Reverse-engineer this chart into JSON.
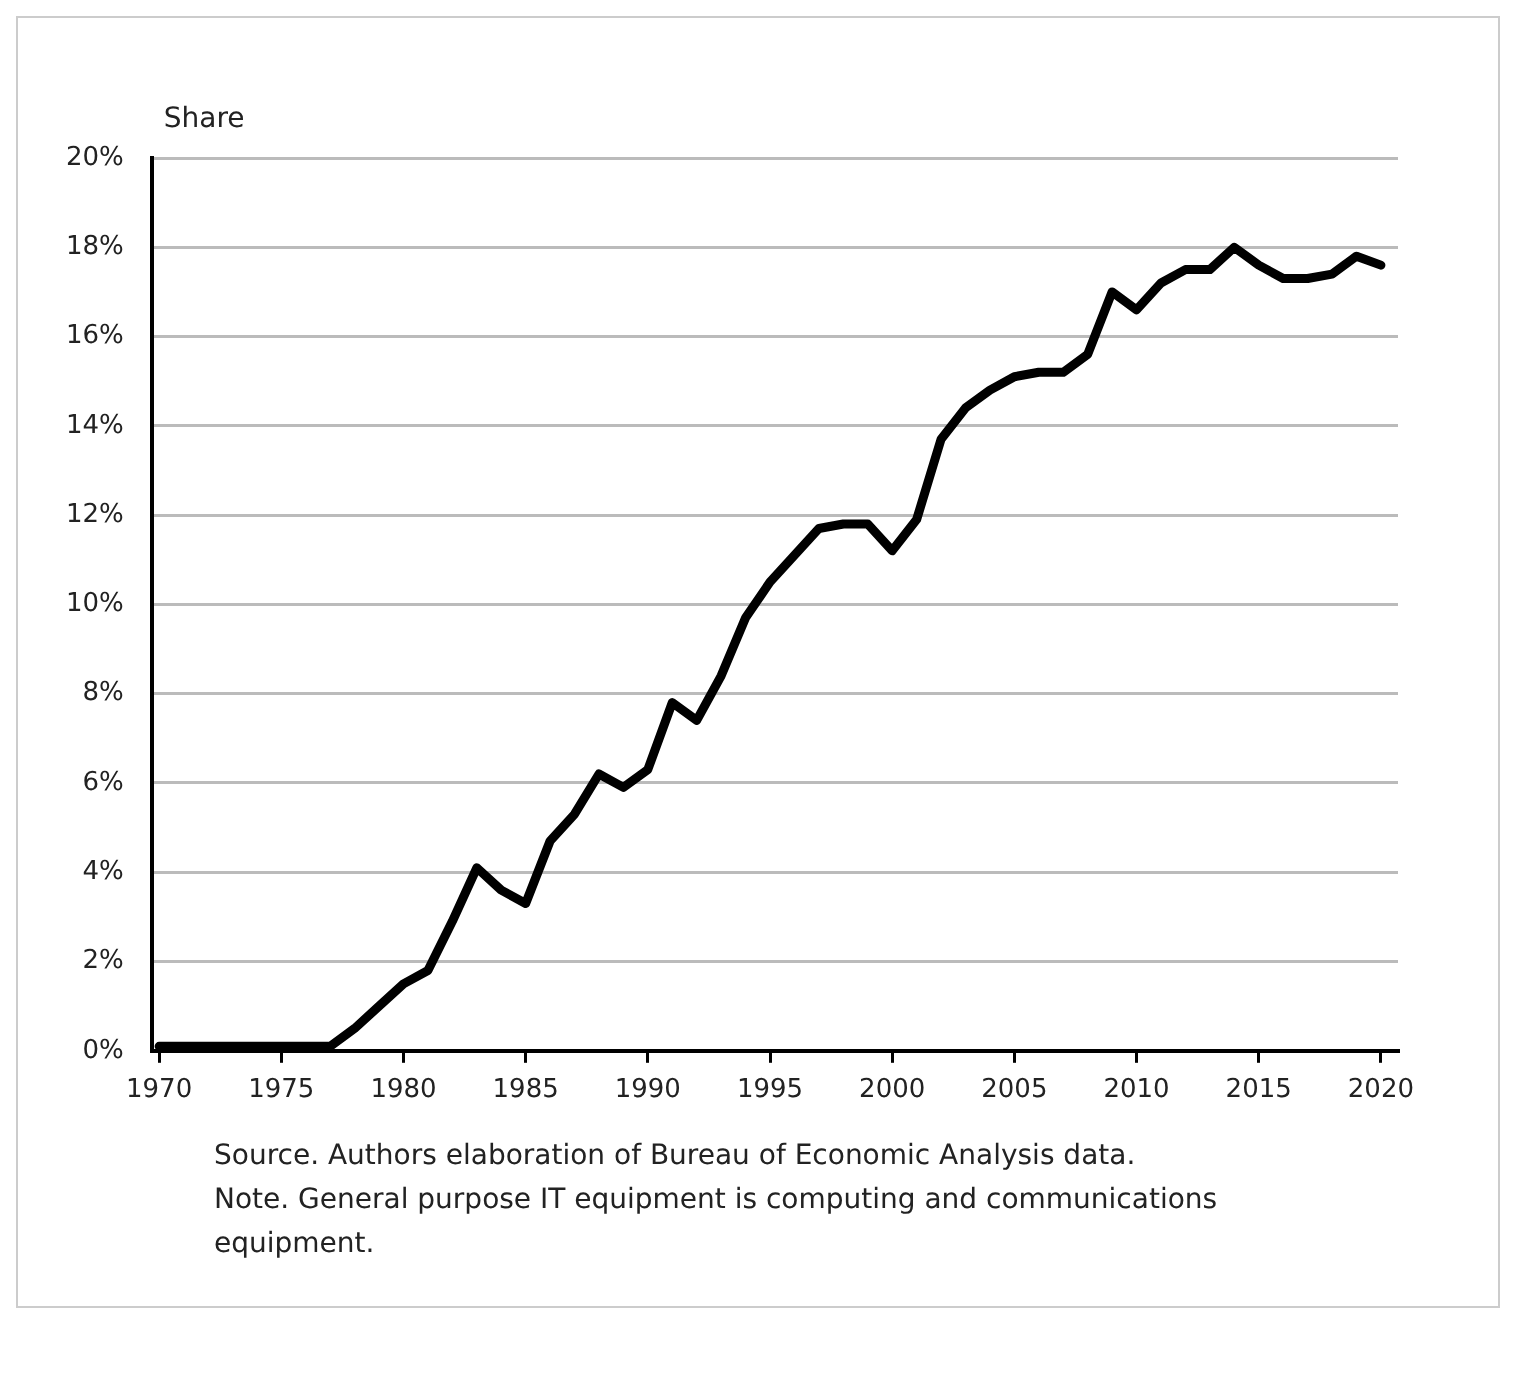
{
  "chart_data": {
    "type": "line",
    "ylabel": "Share",
    "x": [
      1970,
      1971,
      1972,
      1973,
      1974,
      1975,
      1976,
      1977,
      1978,
      1979,
      1980,
      1981,
      1982,
      1983,
      1984,
      1985,
      1986,
      1987,
      1988,
      1989,
      1990,
      1991,
      1992,
      1993,
      1994,
      1995,
      1996,
      1997,
      1998,
      1999,
      2000,
      2001,
      2002,
      2003,
      2004,
      2005,
      2006,
      2007,
      2008,
      2009,
      2010,
      2011,
      2012,
      2013,
      2014,
      2015,
      2016,
      2017,
      2018,
      2019,
      2020
    ],
    "series": [
      {
        "color": "#000000",
        "values": [
          0.1,
          0.1,
          0.1,
          0.1,
          0.1,
          0.1,
          0.1,
          0.1,
          0.5,
          1.0,
          1.5,
          1.8,
          2.9,
          4.1,
          3.6,
          3.3,
          4.7,
          5.3,
          6.2,
          5.9,
          6.3,
          7.8,
          7.4,
          8.4,
          9.7,
          10.5,
          11.1,
          11.7,
          11.8,
          11.8,
          11.2,
          11.9,
          13.7,
          14.4,
          14.8,
          15.1,
          15.2,
          15.2,
          15.6,
          17.0,
          16.6,
          17.2,
          17.5,
          17.5,
          18.0,
          17.6,
          17.3,
          17.3,
          17.4,
          17.8,
          17.6
        ]
      }
    ],
    "xlim": [
      1969.7,
      2020.7
    ],
    "xticks": [
      1970,
      1975,
      1980,
      1985,
      1990,
      1995,
      2000,
      2005,
      2010,
      2015,
      2020
    ],
    "ylim": [
      0,
      20
    ],
    "yticks": [
      {
        "value": 0,
        "label": "0%"
      },
      {
        "value": 2,
        "label": "2%"
      },
      {
        "value": 4,
        "label": "4%"
      },
      {
        "value": 6,
        "label": "6%"
      },
      {
        "value": 8,
        "label": "8%"
      },
      {
        "value": 10,
        "label": "10%"
      },
      {
        "value": 12,
        "label": "12%"
      },
      {
        "value": 14,
        "label": "14%"
      },
      {
        "value": 16,
        "label": "16%"
      },
      {
        "value": 18,
        "label": "18%"
      },
      {
        "value": 20,
        "label": "20%"
      }
    ],
    "grid": "y",
    "legend": false,
    "marker": "none",
    "line_style": "solid",
    "annotations": [
      "Source.  Authors elaboration of Bureau of Economic Analysis data.",
      "Note.  General purpose IT equipment is computing and communications equipment."
    ]
  }
}
